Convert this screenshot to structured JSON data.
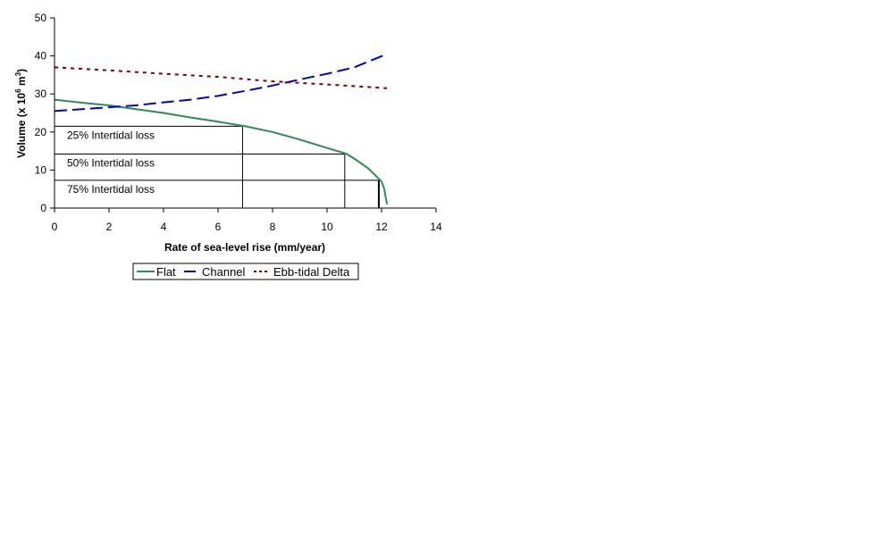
{
  "chart_data": {
    "type": "line",
    "title": "",
    "xlabel": "Rate of sea-level rise (mm/year)",
    "ylabel": "Volume (x 10",
    "ylabel_sup1": "6",
    "ylabel_mid": " m",
    "ylabel_sup2": "3",
    "ylabel_end": ")",
    "xlim": [
      0,
      14
    ],
    "ylim": [
      0,
      50
    ],
    "xticks": [
      0,
      2,
      4,
      6,
      8,
      10,
      12,
      14
    ],
    "yticks": [
      0,
      10,
      20,
      30,
      40,
      50
    ],
    "grid": false,
    "legend_position": "bottom",
    "series": [
      {
        "name": "Flat",
        "color": "#2e8b57",
        "style": "solid",
        "x": [
          0,
          1,
          2,
          3,
          4,
          5,
          6,
          7,
          8,
          9,
          10,
          10.7,
          11,
          11.5,
          12,
          12.1,
          12.2
        ],
        "y": [
          28.5,
          27.7,
          27,
          26,
          25,
          23.8,
          22.7,
          21.5,
          20,
          18,
          15.8,
          14.3,
          13,
          10.5,
          7,
          5,
          1
        ]
      },
      {
        "name": "Channel",
        "color": "#0000cc",
        "style": "dashed",
        "x": [
          0,
          1,
          2,
          3,
          4,
          5,
          6,
          7,
          8,
          9,
          10,
          11,
          12.2
        ],
        "y": [
          25.5,
          26,
          26.5,
          27,
          27.8,
          28.5,
          29.5,
          30.8,
          32.2,
          33.8,
          35.3,
          37,
          40.5
        ]
      },
      {
        "name": "Ebb-tidal Delta",
        "color": "#800000",
        "style": "dotted",
        "x": [
          0,
          2,
          4,
          6,
          8,
          10,
          12.2
        ],
        "y": [
          37,
          36.2,
          35.3,
          34.5,
          33.3,
          32.5,
          31.5
        ]
      }
    ],
    "annotations": [
      {
        "label": "25% Intertidal loss",
        "y": 21.5,
        "x": 6.9
      },
      {
        "label": "50% Intertidal loss",
        "y": 14.2,
        "x": 10.65
      },
      {
        "label": "75% Intertidal loss",
        "y": 7.3,
        "x": 11.9
      }
    ]
  }
}
